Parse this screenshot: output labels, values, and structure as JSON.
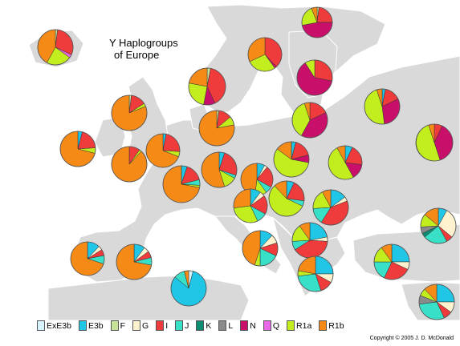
{
  "title_line1": "Y Haplogroups",
  "title_line2": "of Europe",
  "copyright": "Copyright © 2005 J. D. McDonald",
  "colors": {
    "sea": "#ffffff",
    "land": "#d9d9d9",
    "border": "#ffffff"
  },
  "haplogroups": [
    {
      "id": "ExE3b",
      "label": "ExE3b",
      "color": "#d6f3ff"
    },
    {
      "id": "E3b",
      "label": "E3b",
      "color": "#20c6e6"
    },
    {
      "id": "F",
      "label": "F",
      "color": "#c6e39a"
    },
    {
      "id": "G",
      "label": "G",
      "color": "#fff3cf"
    },
    {
      "id": "I",
      "label": "I",
      "color": "#ef3b3b"
    },
    {
      "id": "J",
      "label": "J",
      "color": "#38e0c8"
    },
    {
      "id": "K",
      "label": "K",
      "color": "#0c8c73"
    },
    {
      "id": "L",
      "label": "L",
      "color": "#8a8a8a"
    },
    {
      "id": "N",
      "label": "N",
      "color": "#c8106a"
    },
    {
      "id": "Q",
      "label": "Q",
      "color": "#e868e8"
    },
    {
      "id": "R1a",
      "label": "R1a",
      "color": "#c2ee1e"
    },
    {
      "id": "R1b",
      "label": "R1b",
      "color": "#f58a16"
    }
  ],
  "pies": [
    {
      "id": "iceland",
      "shares": {
        "R1b": 42,
        "R1a": 23,
        "I": 30,
        "F": 2,
        "Q": 3
      }
    },
    {
      "id": "norway-north",
      "shares": {
        "N": 47,
        "R1a": 22,
        "I": 23,
        "R1b": 6,
        "F": 2
      }
    },
    {
      "id": "norway",
      "shares": {
        "R1b": 32,
        "R1a": 28,
        "I": 38,
        "N": 2
      }
    },
    {
      "id": "finland",
      "shares": {
        "N": 63,
        "R1a": 9,
        "I": 28
      }
    },
    {
      "id": "sweden",
      "shares": {
        "I": 40,
        "R1a": 25,
        "R1b": 22,
        "N": 10,
        "F": 3
      }
    },
    {
      "id": "estonia",
      "shares": {
        "N": 40,
        "R1a": 37,
        "I": 18,
        "R1b": 5
      }
    },
    {
      "id": "russia-north",
      "shares": {
        "R1a": 47,
        "N": 30,
        "I": 15,
        "E3b": 3,
        "R1b": 5
      }
    },
    {
      "id": "russia-volga",
      "shares": {
        "N": 38,
        "R1a": 50,
        "I": 7,
        "R1b": 5
      }
    },
    {
      "id": "ireland",
      "shares": {
        "R1b": 81,
        "I": 14,
        "R1a": 3,
        "F": 2
      }
    },
    {
      "id": "scotland",
      "shares": {
        "R1b": 78,
        "I": 12,
        "R1a": 8,
        "F": 2
      }
    },
    {
      "id": "denmark",
      "shares": {
        "R1b": 45,
        "I": 32,
        "R1a": 17,
        "E3b": 3,
        "F": 3
      }
    },
    {
      "id": "wales",
      "shares": {
        "R1b": 88,
        "I": 10,
        "R1a": 2
      }
    },
    {
      "id": "england",
      "shares": {
        "R1b": 69,
        "I": 23,
        "R1a": 5,
        "E3b": 3
      }
    },
    {
      "id": "cornwall",
      "shares": {
        "R1b": 85,
        "I": 12,
        "R1a": 3
      }
    },
    {
      "id": "netherlands",
      "shares": {
        "R1b": 71,
        "I": 20,
        "R1a": 5,
        "E3b": 4
      }
    },
    {
      "id": "germany-north",
      "shares": {
        "R1b": 55,
        "I": 25,
        "R1a": 12,
        "E3b": 5,
        "J": 3
      }
    },
    {
      "id": "poland",
      "shares": {
        "R1a": 57,
        "I": 17,
        "R1b": 15,
        "E3b": 4,
        "N": 7
      }
    },
    {
      "id": "belarus",
      "shares": {
        "R1a": 50,
        "I": 20,
        "N": 15,
        "E3b": 7,
        "R1b": 8
      }
    },
    {
      "id": "ukraine",
      "shares": {
        "R1a": 54,
        "I": 21,
        "N": 8,
        "E3b": 8,
        "R1b": 9
      }
    },
    {
      "id": "france",
      "shares": {
        "R1b": 72,
        "I": 16,
        "J": 5,
        "E3b": 5,
        "R1a": 2
      }
    },
    {
      "id": "germany-south",
      "shares": {
        "R1b": 48,
        "I": 22,
        "R1a": 12,
        "E3b": 8,
        "J": 7,
        "G": 3
      }
    },
    {
      "id": "czech",
      "shares": {
        "R1a": 35,
        "R1b": 28,
        "I": 18,
        "E3b": 10,
        "J": 6,
        "G": 3
      }
    },
    {
      "id": "austria",
      "shares": {
        "R1b": 27,
        "R1a": 30,
        "I": 18,
        "E3b": 10,
        "J": 10,
        "G": 5
      }
    },
    {
      "id": "hungary",
      "shares": {
        "R1a": 56,
        "I": 20,
        "R1b": 12,
        "E3b": 7,
        "J": 5
      }
    },
    {
      "id": "romania",
      "shares": {
        "I": 40,
        "R1a": 18,
        "E3b": 15,
        "J": 15,
        "R1b": 8,
        "G": 4
      }
    },
    {
      "id": "croatia",
      "shares": {
        "I": 42,
        "R1a": 30,
        "E3b": 11,
        "J": 8,
        "R1b": 9
      }
    },
    {
      "id": "serbia",
      "shares": {
        "I": 40,
        "R1a": 16,
        "E3b": 22,
        "J": 8,
        "R1b": 10,
        "G": 4
      }
    },
    {
      "id": "italy-north",
      "shares": {
        "R1b": 45,
        "J": 18,
        "E3b": 12,
        "I": 12,
        "G": 8,
        "R1a": 5
      }
    },
    {
      "id": "bulgaria",
      "shares": {
        "I": 25,
        "E3b": 25,
        "R1a": 15,
        "J": 18,
        "R1b": 10,
        "G": 7
      }
    },
    {
      "id": "spain-west",
      "shares": {
        "R1b": 70,
        "E3b": 12,
        "J": 8,
        "I": 6,
        "G": 4
      }
    },
    {
      "id": "spain-east",
      "shares": {
        "R1b": 72,
        "E3b": 10,
        "J": 7,
        "I": 6,
        "G": 5
      }
    },
    {
      "id": "italy-south",
      "shares": {
        "J": 28,
        "E3b": 25,
        "R1b": 22,
        "I": 12,
        "G": 8,
        "R1a": 5
      }
    },
    {
      "id": "greece",
      "shares": {
        "J": 25,
        "E3b": 28,
        "R1b": 12,
        "I": 15,
        "R1a": 12,
        "G": 8
      }
    },
    {
      "id": "turkey-west",
      "shares": {
        "J": 32,
        "R1b": 16,
        "E3b": 12,
        "G": 10,
        "R1a": 8,
        "I": 8,
        "L": 6,
        "K": 8
      }
    },
    {
      "id": "caucasus",
      "shares": {
        "G": 28,
        "J": 22,
        "R1b": 14,
        "R1a": 12,
        "E3b": 8,
        "L": 6,
        "I": 6,
        "K": 4
      }
    },
    {
      "id": "north-africa",
      "shares": {
        "E3b": 82,
        "J": 10,
        "R1b": 4,
        "ExE3b": 4
      }
    },
    {
      "id": "anatolia-south",
      "shares": {
        "J": 30,
        "E3b": 25,
        "R1b": 12,
        "G": 10,
        "L": 8,
        "R1a": 7,
        "I": 8
      }
    }
  ]
}
